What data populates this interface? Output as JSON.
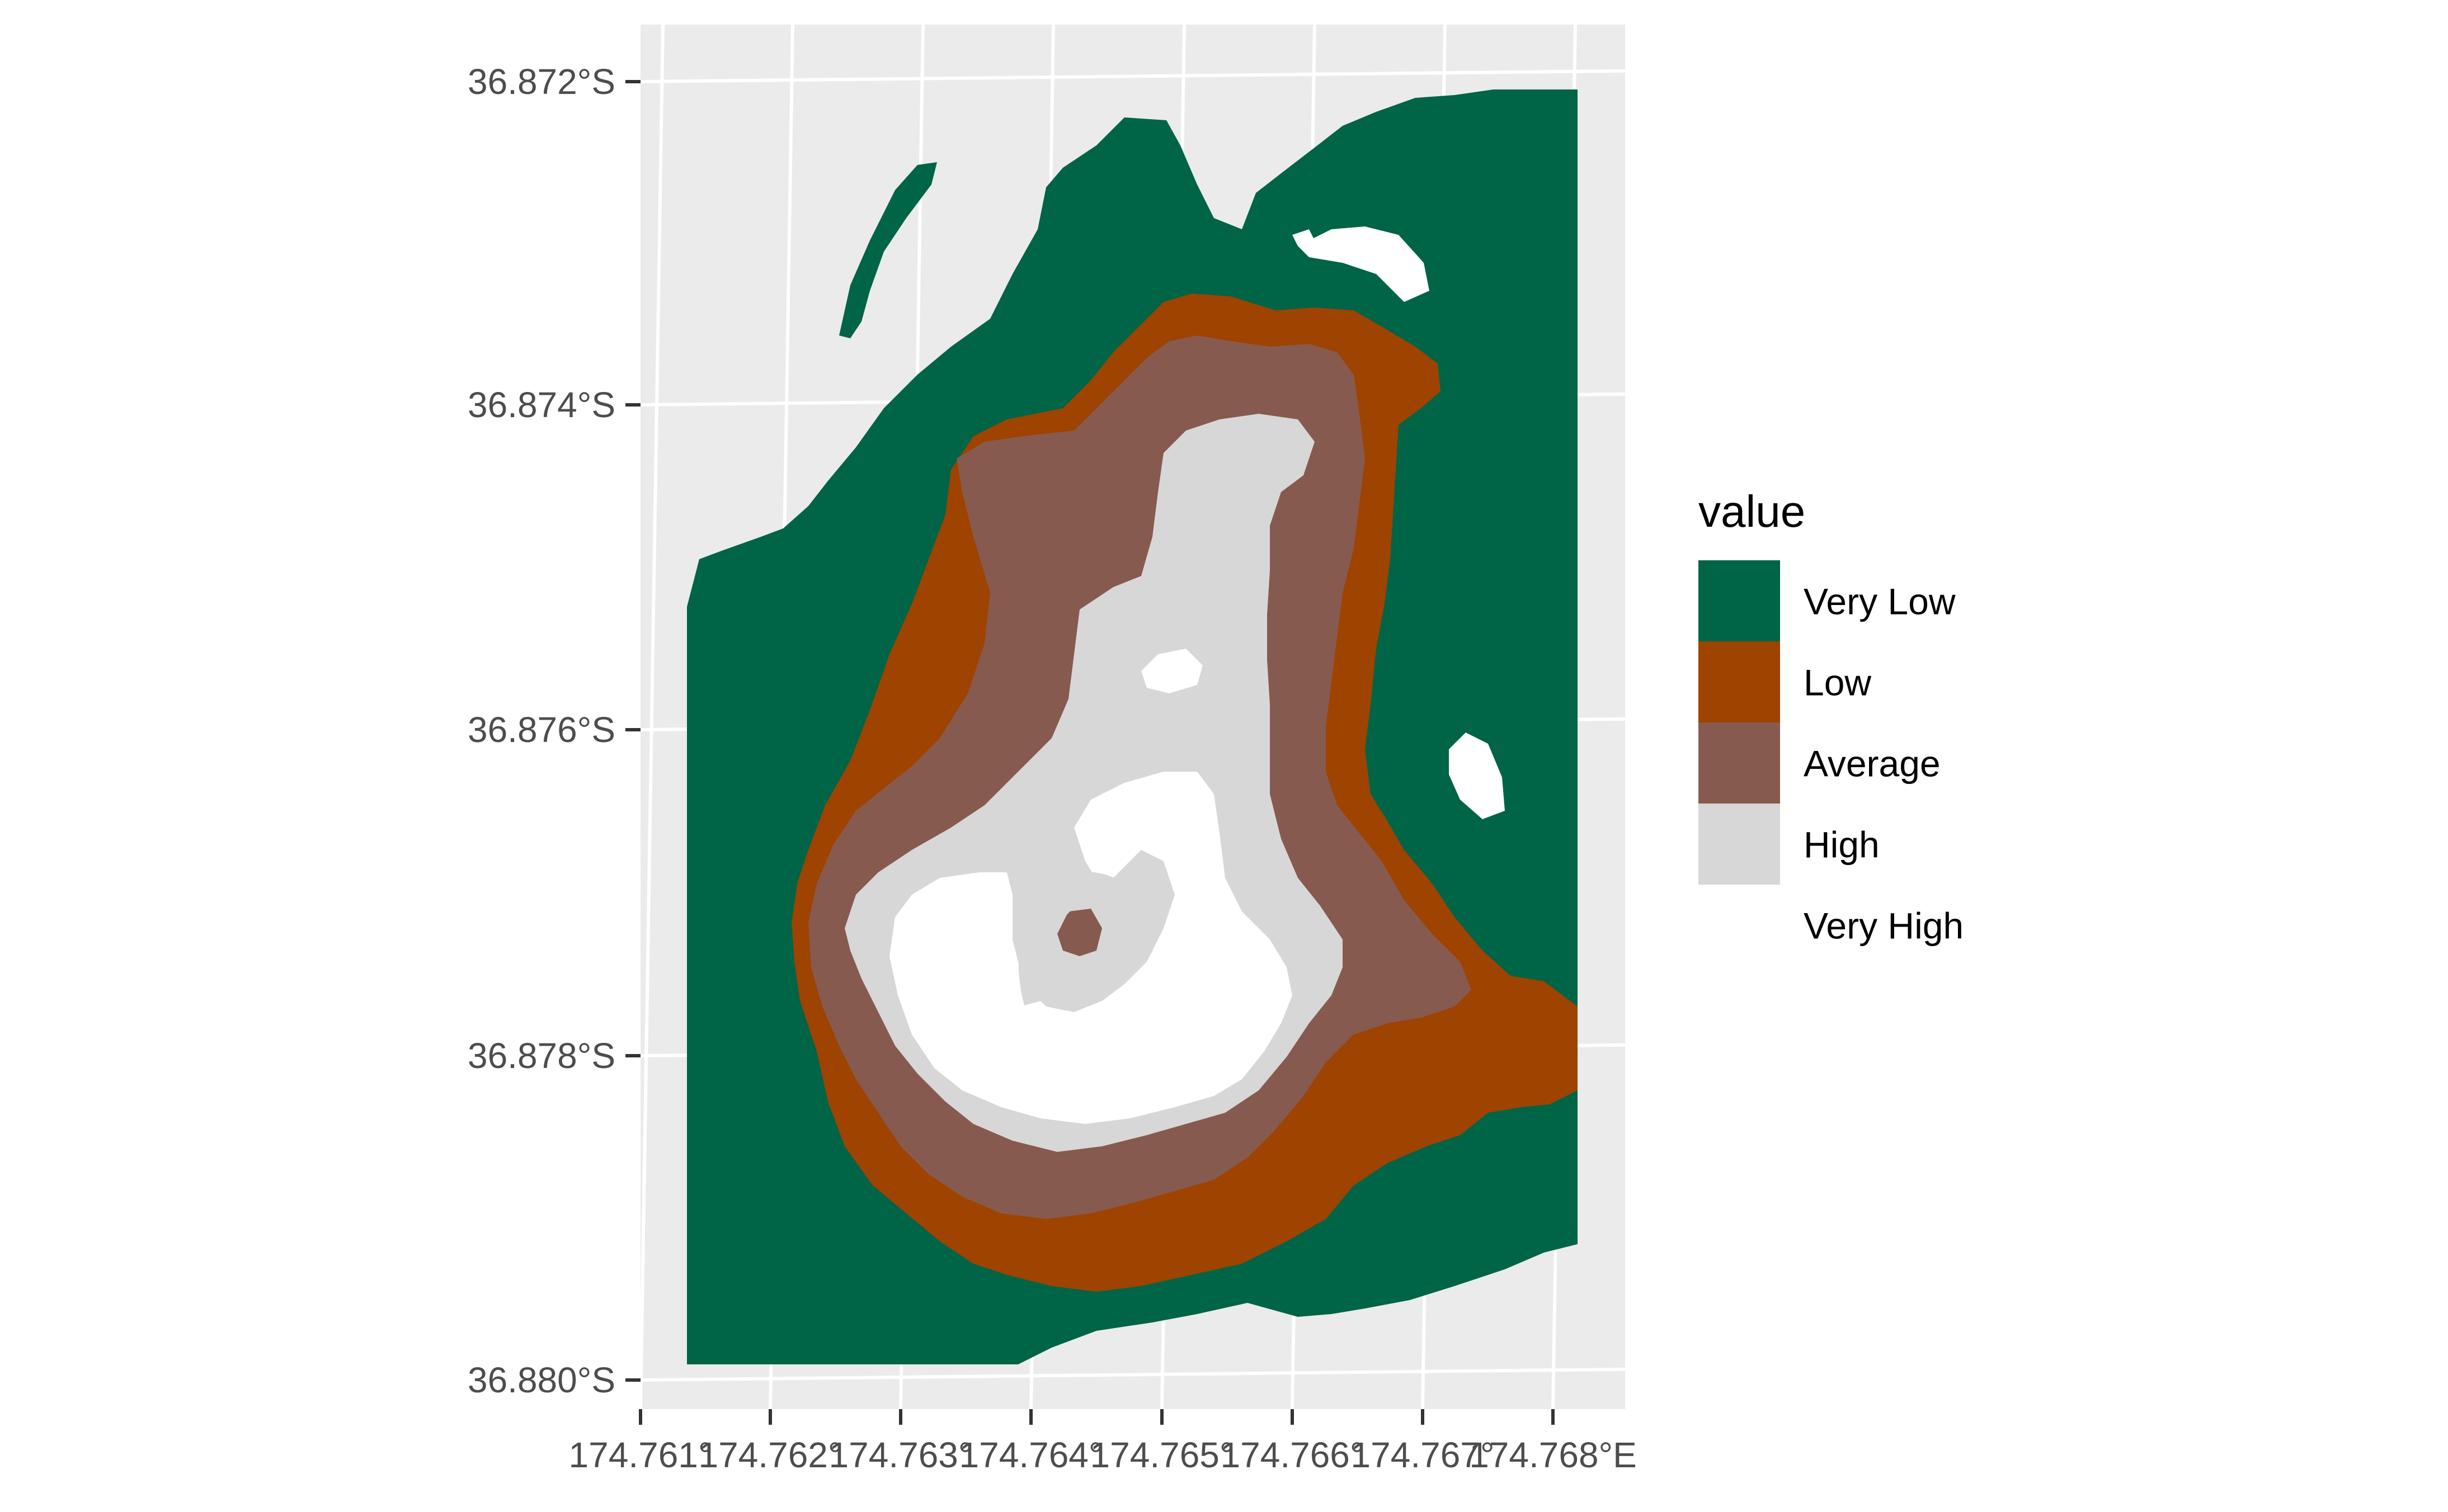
{
  "chart_data": {
    "type": "raster-map",
    "title": "",
    "xlabel": "",
    "ylabel": "",
    "grid": true,
    "legend_position": "right",
    "y_ticks": [
      "36.872°S",
      "36.874°S",
      "36.876°S",
      "36.878°S",
      "36.880°S"
    ],
    "x_ticks": [
      "174.761°E",
      "174.762°E",
      "174.763°E",
      "174.764°E",
      "174.765°E",
      "174.766°E",
      "174.767°E",
      "174.768°E"
    ],
    "x_ticks_visible": [
      "174.761°",
      "174.762°",
      "174.763°",
      "174.764°",
      "174.765°",
      "174.766°",
      "174.767°",
      "174.768°E"
    ],
    "legend": {
      "title": "value",
      "items": [
        {
          "label": "Very Low",
          "color": "#006446"
        },
        {
          "label": "Low",
          "color": "#9E4300"
        },
        {
          "label": "Average",
          "color": "#875A4F"
        },
        {
          "label": "High",
          "color": "#D7D7D7"
        },
        {
          "label": "Very High",
          "color": "#FFFFFF"
        }
      ]
    },
    "panel_background": "#EBEBEB",
    "grid_color": "#FFFFFF"
  }
}
